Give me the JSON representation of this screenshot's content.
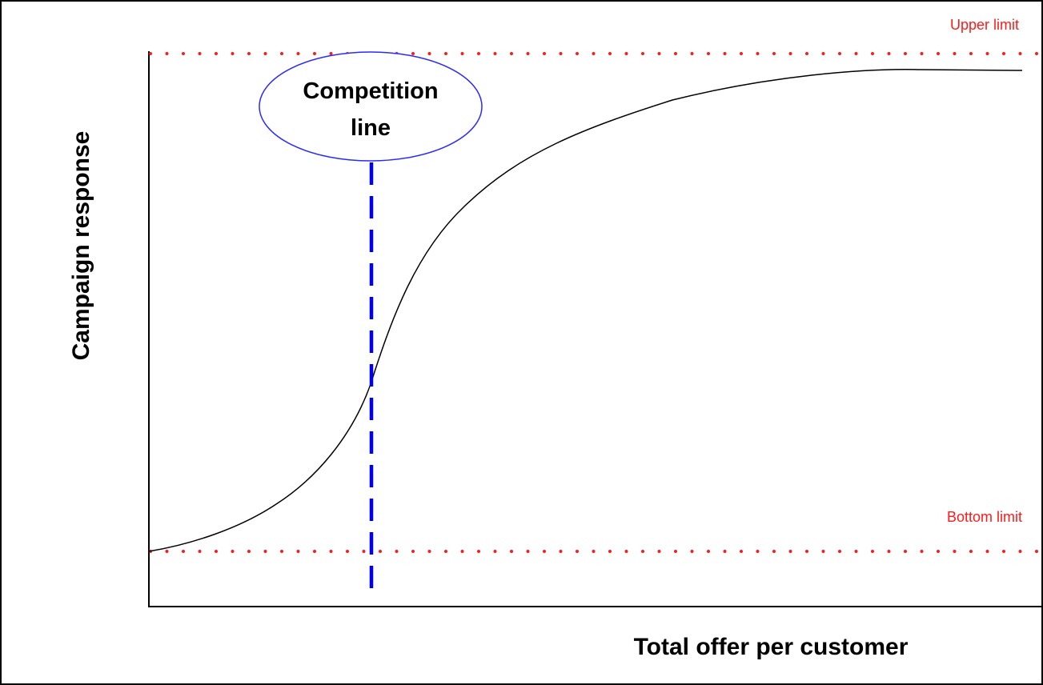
{
  "labels": {
    "upper_limit": "Upper limit",
    "bottom_limit": "Bottom limit",
    "y_axis": "Campaign response",
    "x_axis": "Total offer per customer",
    "callout_line1": "Competition",
    "callout_line2": "line"
  },
  "colors": {
    "background": "#ffffff",
    "frame": "#000000",
    "limit_lines": "#ff1a1a",
    "competition_line": "#0000ee",
    "callout_ellipse": "#2a2aff",
    "curve": "#000000",
    "axes": "#000000"
  }
}
